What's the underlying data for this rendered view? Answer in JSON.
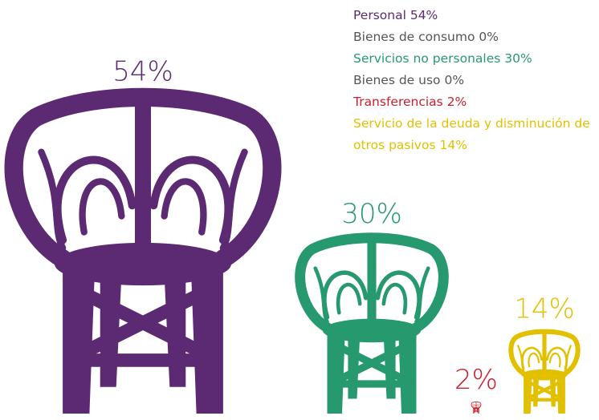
{
  "chart_data": {
    "type": "pictograph",
    "categories": [
      "Personal",
      "Bienes de consumo",
      "Servicios no personales",
      "Bienes de uso",
      "Transferencias",
      "Servicio de la deuda y disminución de otros pasivos"
    ],
    "values": [
      54,
      0,
      30,
      0,
      2,
      14
    ],
    "value_labels": [
      "54%",
      "0%",
      "30%",
      "0%",
      "2%",
      "14%"
    ],
    "colors": [
      "#5c2a72",
      "#555555",
      "#27996f",
      "#555555",
      "#c8202d",
      "#e2c000"
    ]
  }
}
